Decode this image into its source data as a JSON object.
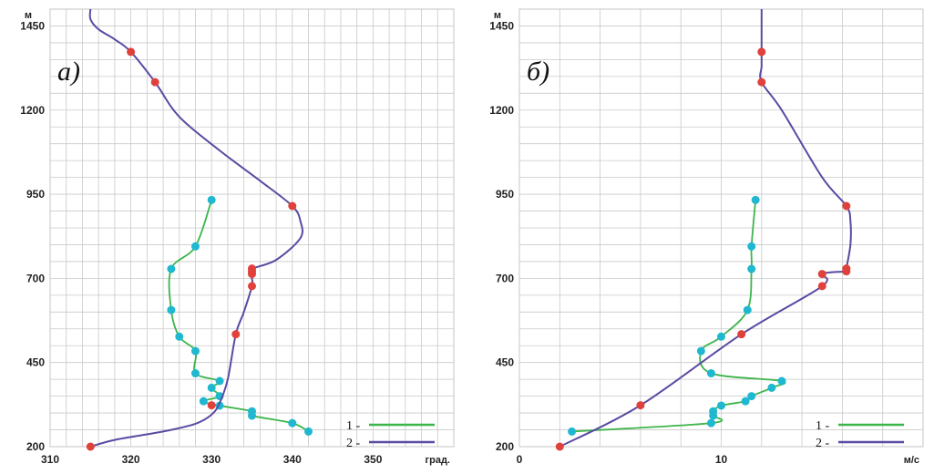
{
  "chart_data": [
    {
      "type": "line",
      "panel_label": "a)",
      "xunit": "град.",
      "yunit": "м",
      "xlim": [
        310,
        360
      ],
      "ylim": [
        200,
        1500
      ],
      "xticks": [
        310,
        320,
        330,
        340,
        350
      ],
      "yticks": [
        200,
        450,
        700,
        950,
        1200,
        1450
      ],
      "grid": true,
      "legend_position": "bottom-right",
      "series": [
        {
          "legend_marker": "1 -",
          "color": "#3cb54a",
          "marker_color": "#1fb8d0",
          "points": [
            [
              342,
              245
            ],
            [
              340,
              270
            ],
            [
              335,
              292
            ],
            [
              335,
              305
            ],
            [
              331,
              322
            ],
            [
              329,
              335
            ],
            [
              331,
              350
            ],
            [
              330,
              375
            ],
            [
              331,
              395
            ],
            [
              328,
              418
            ],
            [
              328,
              484
            ],
            [
              326,
              527
            ],
            [
              325,
              606
            ],
            [
              325,
              728
            ],
            [
              328,
              795
            ],
            [
              330,
              933
            ]
          ]
        },
        {
          "legend_marker": "2 -",
          "color": "#5b4aa2",
          "marker_color": "#e0413a",
          "markers": [
            [
              315,
              200
            ],
            [
              330,
              323
            ],
            [
              333,
              534
            ],
            [
              335,
              677
            ],
            [
              335,
              713
            ],
            [
              335,
              721
            ],
            [
              335,
              729
            ],
            [
              340,
              915
            ],
            [
              323,
              1283
            ],
            [
              320,
              1373
            ]
          ],
          "curve": [
            [
              315,
              200
            ],
            [
              318,
              220
            ],
            [
              324,
              245
            ],
            [
              328,
              268
            ],
            [
              330,
              295
            ],
            [
              331,
              330
            ],
            [
              332,
              400
            ],
            [
              333,
              534
            ],
            [
              334,
              600
            ],
            [
              335,
              677
            ],
            [
              335,
              700
            ],
            [
              335,
              721
            ],
            [
              335,
              729
            ],
            [
              338,
              755
            ],
            [
              341,
              820
            ],
            [
              341,
              870
            ],
            [
              340,
              915
            ],
            [
              336,
              990
            ],
            [
              331,
              1080
            ],
            [
              326,
              1180
            ],
            [
              323,
              1283
            ],
            [
              320,
              1373
            ],
            [
              318,
              1410
            ],
            [
              316,
              1440
            ],
            [
              315,
              1470
            ],
            [
              315,
              1500
            ]
          ]
        }
      ]
    },
    {
      "type": "line",
      "panel_label": "б)",
      "xunit": "м/с",
      "yunit": "м",
      "xlim": [
        0,
        20
      ],
      "ylim": [
        200,
        1500
      ],
      "xticks": [
        0,
        10
      ],
      "yticks": [
        200,
        450,
        700,
        950,
        1200,
        1450
      ],
      "grid": true,
      "legend_position": "bottom-right",
      "series": [
        {
          "legend_marker": "1 -",
          "color": "#3cb54a",
          "marker_color": "#1fb8d0",
          "points": [
            [
              2.6,
              245
            ],
            [
              9.5,
              270
            ],
            [
              9.6,
              292
            ],
            [
              9.6,
              305
            ],
            [
              10,
              322
            ],
            [
              11.2,
              335
            ],
            [
              11.5,
              350
            ],
            [
              12.5,
              375
            ],
            [
              13,
              395
            ],
            [
              9.5,
              418
            ],
            [
              9,
              484
            ],
            [
              10,
              527
            ],
            [
              11.3,
              606
            ],
            [
              11.5,
              728
            ],
            [
              11.5,
              795
            ],
            [
              11.7,
              933
            ]
          ]
        },
        {
          "legend_marker": "2 -",
          "color": "#5b4aa2",
          "marker_color": "#e0413a",
          "markers": [
            [
              2,
              200
            ],
            [
              6,
              323
            ],
            [
              11,
              534
            ],
            [
              15,
              677
            ],
            [
              15,
              713
            ],
            [
              16.2,
              721
            ],
            [
              16.2,
              729
            ],
            [
              16.2,
              915
            ],
            [
              12,
              1283
            ],
            [
              12,
              1373
            ]
          ],
          "curve": [
            [
              2,
              200
            ],
            [
              6,
              323
            ],
            [
              11,
              534
            ],
            [
              15,
              677
            ],
            [
              15,
              713
            ],
            [
              16.2,
              721
            ],
            [
              16.2,
              729
            ],
            [
              16.4,
              800
            ],
            [
              16.4,
              870
            ],
            [
              16.2,
              915
            ],
            [
              15,
              1000
            ],
            [
              13,
              1200
            ],
            [
              12,
              1283
            ],
            [
              12,
              1330
            ],
            [
              12,
              1373
            ],
            [
              12,
              1500
            ]
          ]
        }
      ]
    }
  ]
}
